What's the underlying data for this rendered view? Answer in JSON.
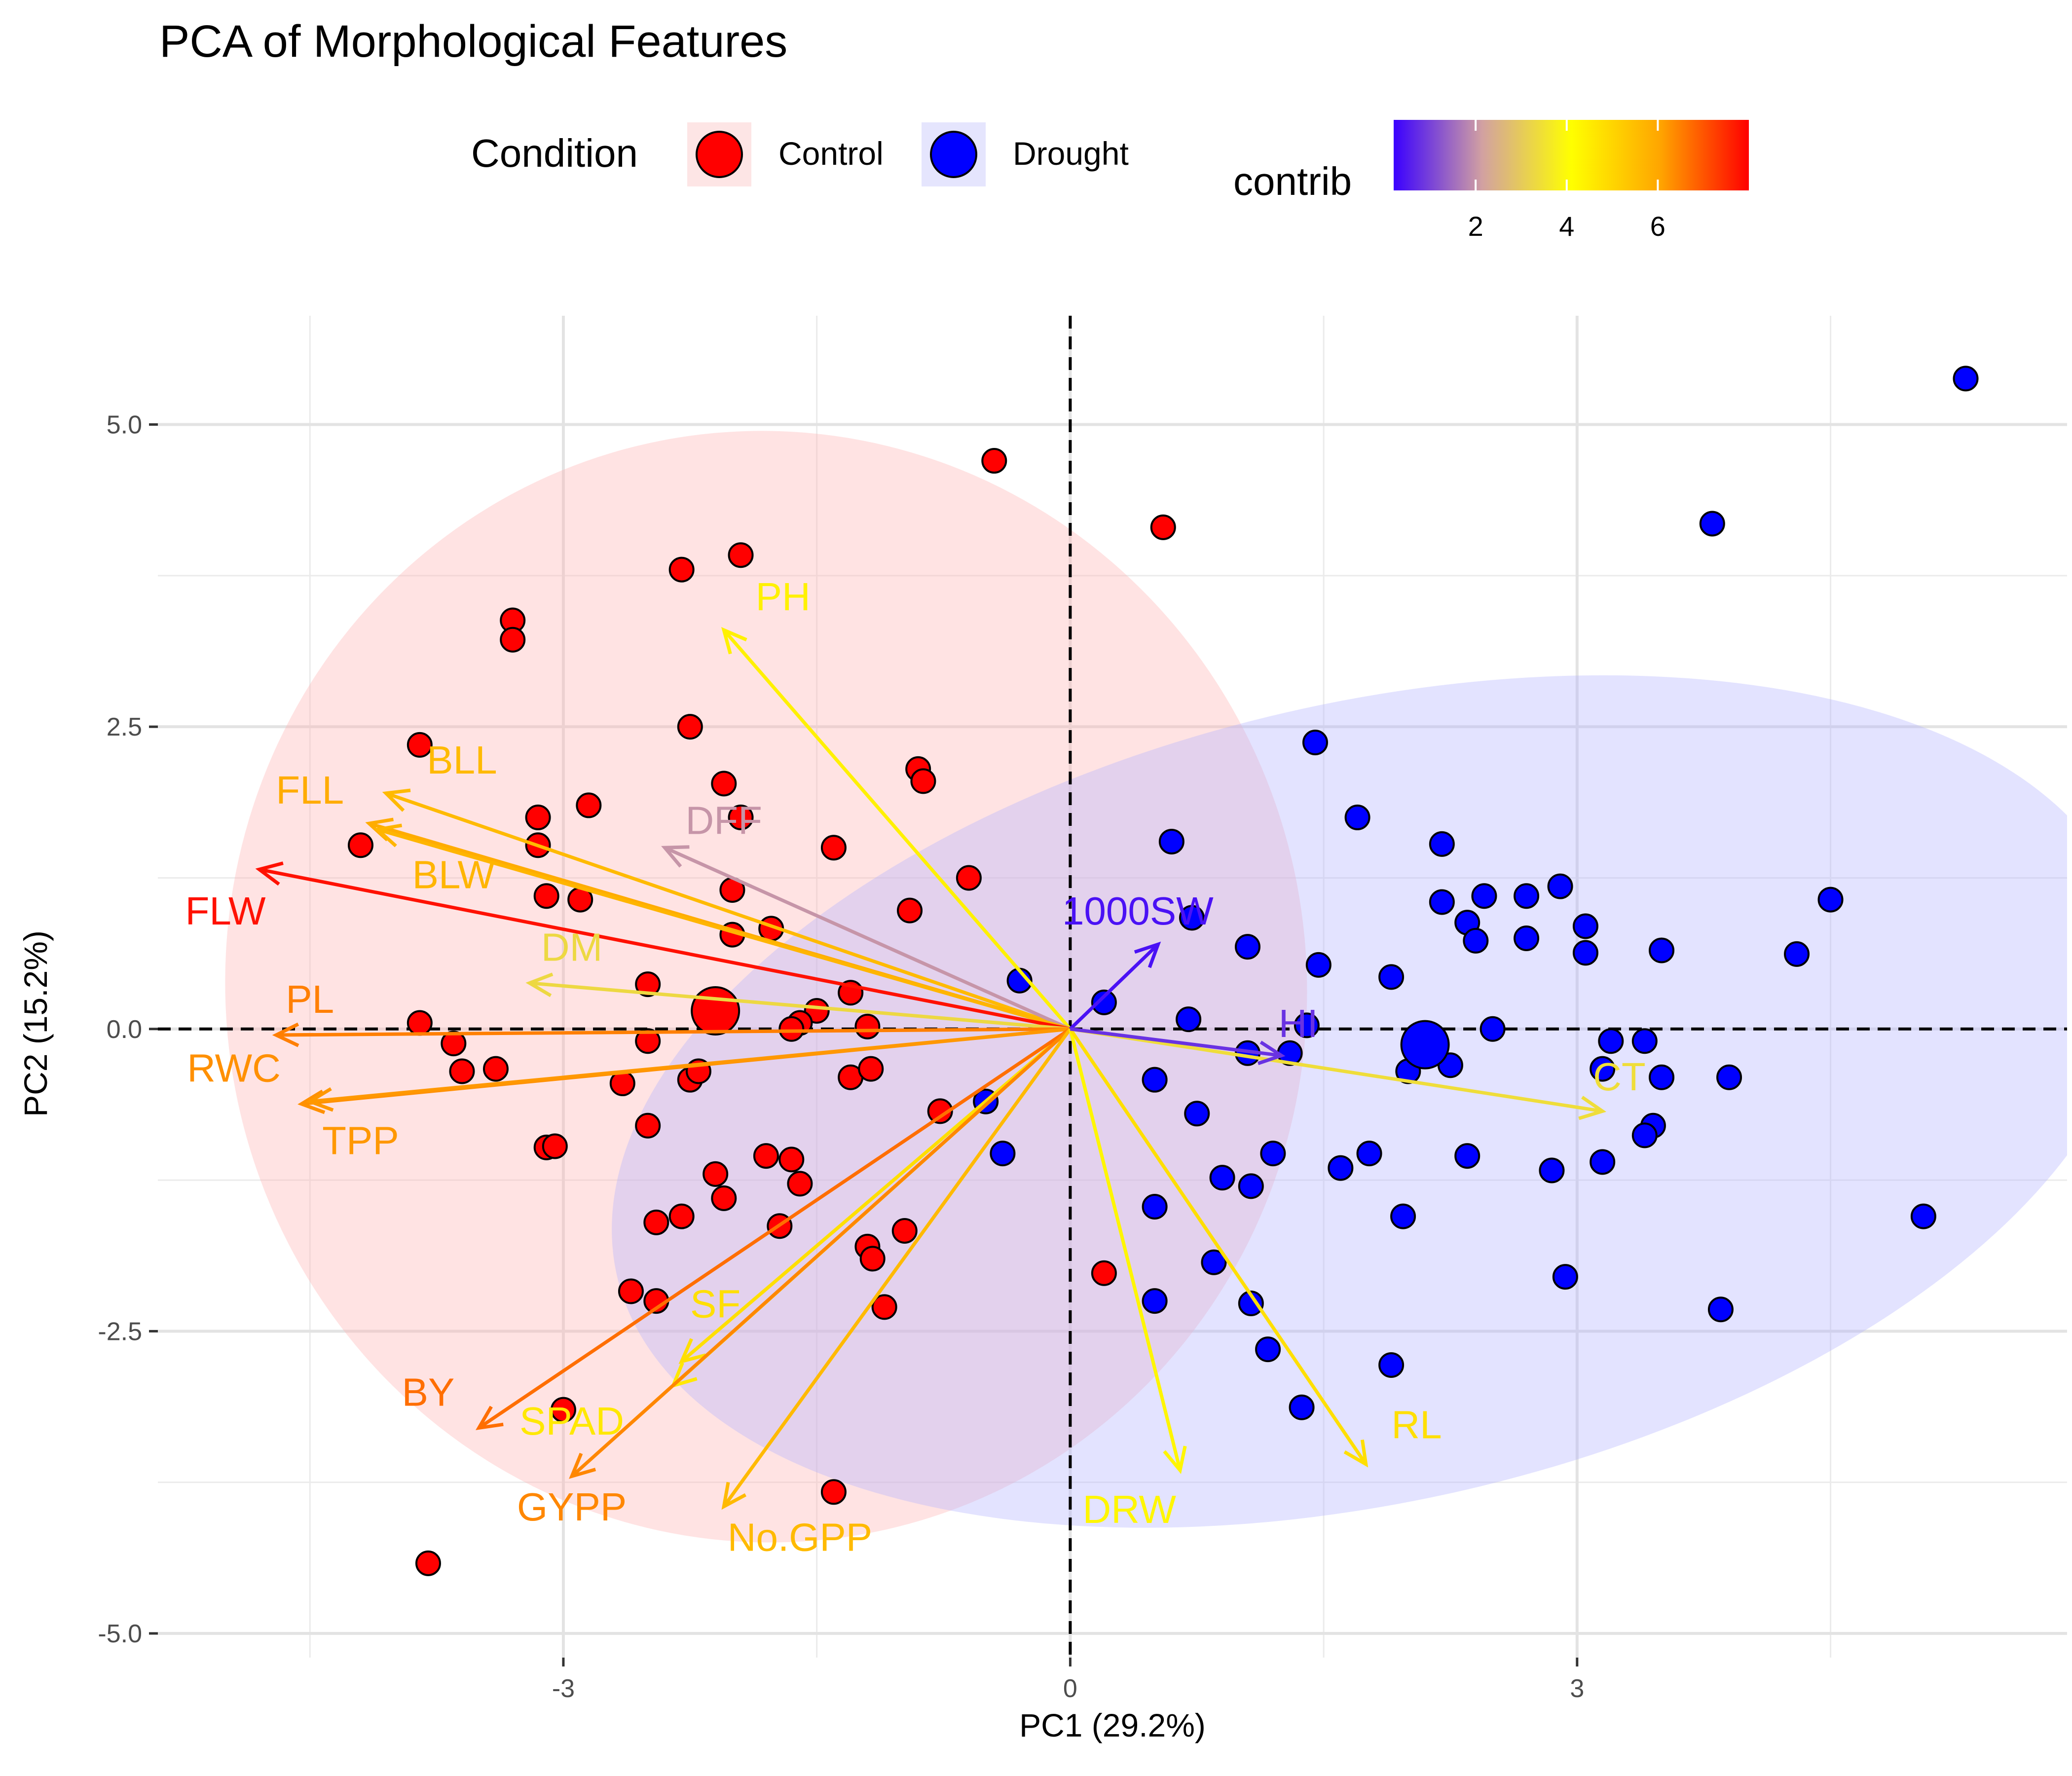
{
  "chart_data": {
    "type": "scatter",
    "title": "PCA of Morphological Features",
    "xlabel": "PC1 (29.2%)",
    "ylabel": "PC2 (15.2%)",
    "xlim": [
      -5.4,
      5.9
    ],
    "ylim": [
      -5.2,
      5.9
    ],
    "x_ticks": [
      {
        "value": -3,
        "label": "-3"
      },
      {
        "value": 0,
        "label": "0"
      },
      {
        "value": 3,
        "label": "3"
      }
    ],
    "y_ticks": [
      {
        "value": 5,
        "label": "5.0"
      },
      {
        "value": 2.5,
        "label": "2.5"
      },
      {
        "value": 0,
        "label": "0.0"
      },
      {
        "value": -2.5,
        "label": "-2.5"
      },
      {
        "value": -5,
        "label": "-5.0"
      }
    ],
    "grid": true,
    "legend": {
      "placement": "top",
      "condition_title": "Condition",
      "contrib_title": "contrib",
      "contrib_ticks": [
        {
          "value": 2,
          "label": "2"
        },
        {
          "value": 4,
          "label": "4"
        },
        {
          "value": 6,
          "label": "6"
        }
      ],
      "contrib_range": [
        0.2,
        8.0
      ]
    },
    "colors": {
      "Control": "#ff0000",
      "Drought": "#0000ff",
      "Control_ellipse": "#ffb6b6",
      "Drought_ellipse": "#b6b6ff",
      "gradient": [
        "#3a00ff",
        "#d2a1a1",
        "#ffff00",
        "#ffa500",
        "#ff0000"
      ]
    },
    "groups": [
      {
        "name": "Control",
        "centroid": [
          -2.1,
          0.15
        ],
        "ellipse": {
          "cx": -1.8,
          "cy": 0.35,
          "rx": 3.2,
          "ry": 4.6,
          "angle": -8
        },
        "points": [
          [
            -0.45,
            4.7
          ],
          [
            0.55,
            4.15
          ],
          [
            -1.95,
            3.92
          ],
          [
            -2.3,
            3.8
          ],
          [
            -3.3,
            3.38
          ],
          [
            -3.3,
            3.22
          ],
          [
            -2.25,
            2.5
          ],
          [
            -3.85,
            2.35
          ],
          [
            -0.9,
            2.15
          ],
          [
            -2.05,
            2.03
          ],
          [
            -0.87,
            2.05
          ],
          [
            -2.85,
            1.85
          ],
          [
            -3.15,
            1.75
          ],
          [
            -1.95,
            1.75
          ],
          [
            -4.2,
            1.52
          ],
          [
            -3.15,
            1.52
          ],
          [
            -1.4,
            1.5
          ],
          [
            -0.6,
            1.25
          ],
          [
            -2.0,
            1.15
          ],
          [
            -3.1,
            1.1
          ],
          [
            -2.9,
            1.07
          ],
          [
            -0.95,
            0.98
          ],
          [
            -1.77,
            0.83
          ],
          [
            -2.0,
            0.78
          ],
          [
            -2.5,
            0.37
          ],
          [
            -1.3,
            0.3
          ],
          [
            -1.5,
            0.15
          ],
          [
            -1.6,
            0.05
          ],
          [
            -1.65,
            0.0
          ],
          [
            -1.2,
            0.02
          ],
          [
            -3.85,
            0.05
          ],
          [
            -2.5,
            -0.1
          ],
          [
            -3.65,
            -0.12
          ],
          [
            -3.6,
            -0.35
          ],
          [
            -3.4,
            -0.33
          ],
          [
            -1.3,
            -0.4
          ],
          [
            -1.18,
            -0.33
          ],
          [
            -2.65,
            -0.45
          ],
          [
            -2.25,
            -0.42
          ],
          [
            -2.2,
            -0.35
          ],
          [
            -2.5,
            -0.8
          ],
          [
            -0.77,
            -0.68
          ],
          [
            -3.1,
            -0.98
          ],
          [
            -3.05,
            -0.97
          ],
          [
            -1.8,
            -1.05
          ],
          [
            -1.65,
            -1.08
          ],
          [
            -2.1,
            -1.2
          ],
          [
            -1.6,
            -1.28
          ],
          [
            -2.05,
            -1.4
          ],
          [
            -2.3,
            -1.55
          ],
          [
            -2.45,
            -1.6
          ],
          [
            -1.72,
            -1.63
          ],
          [
            -0.98,
            -1.67
          ],
          [
            -1.2,
            -1.8
          ],
          [
            -1.17,
            -1.9
          ],
          [
            -2.6,
            -2.17
          ],
          [
            -2.45,
            -2.25
          ],
          [
            -1.1,
            -2.3
          ],
          [
            0.2,
            -2.02
          ],
          [
            -3.0,
            -3.15
          ],
          [
            -1.4,
            -3.83
          ],
          [
            -3.8,
            -4.42
          ]
        ]
      },
      {
        "name": "Drought",
        "centroid": [
          2.1,
          -0.13
        ],
        "ellipse": {
          "cx": 1.8,
          "cy": -0.6,
          "rx": 4.6,
          "ry": 3.3,
          "angle": -13
        },
        "points": [
          [
            5.3,
            5.38
          ],
          [
            3.8,
            4.18
          ],
          [
            1.45,
            2.37
          ],
          [
            1.7,
            1.75
          ],
          [
            2.2,
            1.53
          ],
          [
            0.6,
            1.55
          ],
          [
            2.9,
            1.18
          ],
          [
            4.5,
            1.07
          ],
          [
            2.45,
            1.1
          ],
          [
            2.7,
            1.1
          ],
          [
            2.2,
            1.05
          ],
          [
            2.35,
            0.88
          ],
          [
            0.72,
            0.92
          ],
          [
            3.05,
            0.85
          ],
          [
            2.4,
            0.73
          ],
          [
            2.7,
            0.75
          ],
          [
            1.05,
            0.68
          ],
          [
            3.05,
            0.63
          ],
          [
            3.5,
            0.65
          ],
          [
            4.3,
            0.62
          ],
          [
            1.47,
            0.53
          ],
          [
            1.9,
            0.43
          ],
          [
            -0.3,
            0.4
          ],
          [
            0.2,
            0.22
          ],
          [
            0.7,
            0.08
          ],
          [
            1.4,
            0.03
          ],
          [
            2.5,
            0.0
          ],
          [
            3.2,
            -0.1
          ],
          [
            3.4,
            -0.1
          ],
          [
            1.05,
            -0.2
          ],
          [
            1.3,
            -0.2
          ],
          [
            2.0,
            -0.35
          ],
          [
            2.25,
            -0.3
          ],
          [
            3.15,
            -0.33
          ],
          [
            3.9,
            -0.4
          ],
          [
            3.5,
            -0.4
          ],
          [
            0.5,
            -0.42
          ],
          [
            3.45,
            -0.8
          ],
          [
            -0.5,
            -0.6
          ],
          [
            0.75,
            -0.7
          ],
          [
            3.4,
            -0.88
          ],
          [
            -0.4,
            -1.03
          ],
          [
            1.2,
            -1.03
          ],
          [
            1.77,
            -1.03
          ],
          [
            2.35,
            -1.05
          ],
          [
            1.6,
            -1.15
          ],
          [
            3.15,
            -1.1
          ],
          [
            2.85,
            -1.17
          ],
          [
            0.9,
            -1.23
          ],
          [
            1.07,
            -1.3
          ],
          [
            0.5,
            -1.47
          ],
          [
            1.97,
            -1.55
          ],
          [
            5.05,
            -1.55
          ],
          [
            0.85,
            -1.93
          ],
          [
            2.93,
            -2.05
          ],
          [
            0.5,
            -2.25
          ],
          [
            1.07,
            -2.27
          ],
          [
            3.85,
            -2.32
          ],
          [
            1.17,
            -2.65
          ],
          [
            1.9,
            -2.78
          ],
          [
            1.37,
            -3.13
          ]
        ]
      }
    ],
    "variables": [
      {
        "name": "PH",
        "x": -2.05,
        "y": 3.3,
        "contrib": 4.4,
        "label_x": -1.7,
        "label_y": 3.55
      },
      {
        "name": "BLL",
        "x": -4.05,
        "y": 1.95,
        "contrib": 5.6,
        "label_x": -3.6,
        "label_y": 2.2
      },
      {
        "name": "FLL",
        "x": -4.15,
        "y": 1.7,
        "contrib": 5.9,
        "label_x": -4.5,
        "label_y": 1.95
      },
      {
        "name": "DFF",
        "x": -2.4,
        "y": 1.5,
        "contrib": 2.0,
        "label_x": -2.05,
        "label_y": 1.7
      },
      {
        "name": "BLW",
        "x": -4.1,
        "y": 1.65,
        "contrib": 5.7,
        "label_x": -3.65,
        "label_y": 1.25
      },
      {
        "name": "FLW",
        "x": -4.8,
        "y": 1.32,
        "contrib": 7.8,
        "label_x": -5.0,
        "label_y": 0.95
      },
      {
        "name": "DM",
        "x": -3.2,
        "y": 0.38,
        "contrib": 3.3,
        "label_x": -2.95,
        "label_y": 0.65
      },
      {
        "name": "PL",
        "x": -4.7,
        "y": -0.05,
        "contrib": 6.5,
        "label_x": -4.5,
        "label_y": 0.22
      },
      {
        "name": "RWC",
        "x": -4.55,
        "y": -0.62,
        "contrib": 6.3,
        "label_x": -4.95,
        "label_y": -0.35
      },
      {
        "name": "TPP",
        "x": -4.5,
        "y": -0.6,
        "contrib": 6.2,
        "label_x": -4.2,
        "label_y": -0.95
      },
      {
        "name": "SF",
        "x": -2.3,
        "y": -2.75,
        "contrib": 4.8,
        "label_x": -2.1,
        "label_y": -2.3
      },
      {
        "name": "SPAD",
        "x": -2.35,
        "y": -2.95,
        "contrib": 4.6,
        "label_x": -2.95,
        "label_y": -3.27
      },
      {
        "name": "BY",
        "x": -3.5,
        "y": -3.3,
        "contrib": 6.7,
        "label_x": -3.8,
        "label_y": -3.03
      },
      {
        "name": "GYPP",
        "x": -2.95,
        "y": -3.7,
        "contrib": 6.4,
        "label_x": -2.95,
        "label_y": -3.98
      },
      {
        "name": "No.GPP",
        "x": -2.05,
        "y": -3.95,
        "contrib": 5.6,
        "label_x": -1.6,
        "label_y": -4.23
      },
      {
        "name": "DRW",
        "x": 0.65,
        "y": -3.65,
        "contrib": 4.3,
        "label_x": 0.35,
        "label_y": -4.0
      },
      {
        "name": "RL",
        "x": 1.75,
        "y": -3.6,
        "contrib": 4.8,
        "label_x": 2.05,
        "label_y": -3.3
      },
      {
        "name": "CT",
        "x": 3.15,
        "y": -0.68,
        "contrib": 3.4,
        "label_x": 3.25,
        "label_y": -0.42
      },
      {
        "name": "1000SW",
        "x": 0.52,
        "y": 0.7,
        "contrib": 0.4,
        "label_x": 0.4,
        "label_y": 0.95
      },
      {
        "name": "HI",
        "x": 1.25,
        "y": -0.22,
        "contrib": 0.8,
        "label_x": 1.35,
        "label_y": 0.02
      }
    ]
  }
}
